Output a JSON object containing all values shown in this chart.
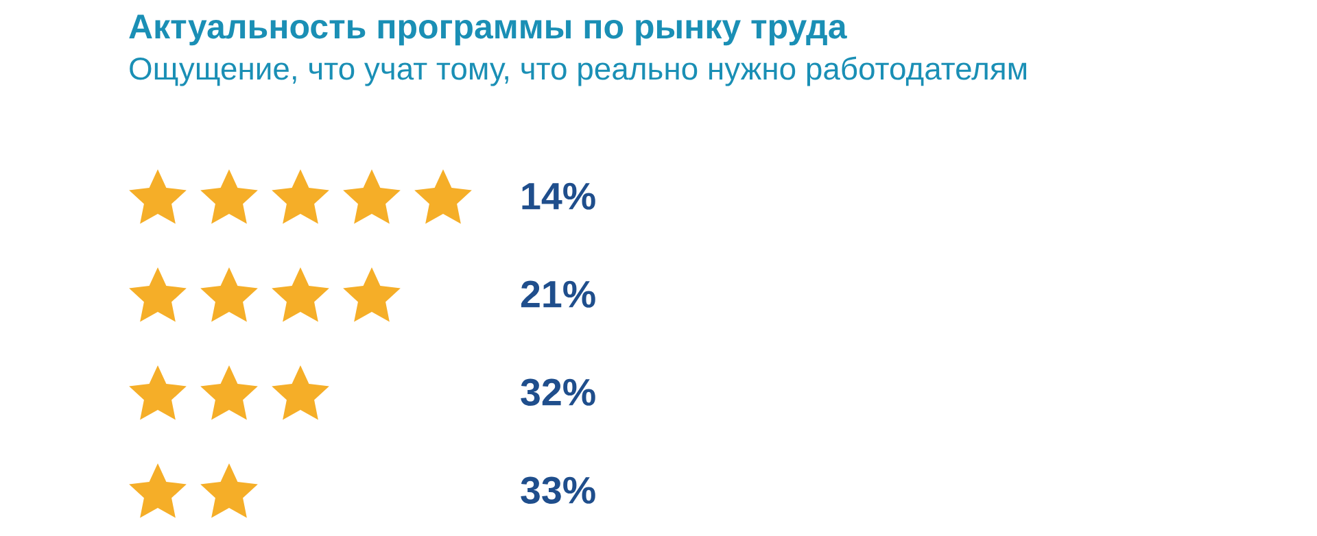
{
  "chart_data": {
    "type": "other",
    "title": "Актуальность программы по рынку труда",
    "subtitle": "Ощущение, что учат тому, что реально нужно работодателям",
    "categories": [
      null,
      null,
      null,
      null
    ],
    "values": [
      14,
      21,
      32,
      33
    ],
    "value_labels": [
      "14%",
      "21%",
      "32%",
      "33%"
    ],
    "color": "#f5ae28"
  }
}
